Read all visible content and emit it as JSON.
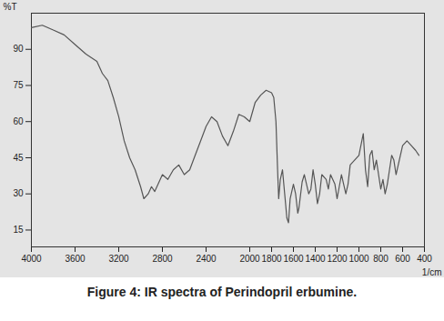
{
  "chart_data": {
    "type": "line",
    "title": "Figure 4: IR spectra of Perindopril erbumine.",
    "x_label": "1/cm",
    "y_label": "%T",
    "x": [
      4000,
      3900,
      3800,
      3700,
      3600,
      3500,
      3400,
      3350,
      3300,
      3250,
      3200,
      3150,
      3100,
      3050,
      3000,
      2970,
      2930,
      2900,
      2870,
      2800,
      2750,
      2700,
      2650,
      2600,
      2550,
      2500,
      2450,
      2400,
      2350,
      2300,
      2250,
      2200,
      2150,
      2100,
      2050,
      2000,
      1950,
      1900,
      1850,
      1800,
      1780,
      1760,
      1745,
      1735,
      1720,
      1700,
      1680,
      1660,
      1645,
      1630,
      1600,
      1580,
      1560,
      1550,
      1520,
      1500,
      1460,
      1440,
      1420,
      1400,
      1380,
      1360,
      1340,
      1300,
      1280,
      1260,
      1220,
      1200,
      1180,
      1160,
      1120,
      1100,
      1080,
      1040,
      1000,
      960,
      940,
      920,
      900,
      880,
      860,
      840,
      820,
      800,
      780,
      760,
      740,
      720,
      700,
      680,
      660,
      640,
      600,
      560,
      520,
      480,
      450
    ],
    "values": [
      99,
      100,
      98,
      96,
      92,
      88,
      85,
      80,
      77,
      70,
      62,
      52,
      45,
      40,
      33,
      28,
      30,
      33,
      31,
      38,
      36,
      40,
      42,
      38,
      40,
      46,
      52,
      58,
      62,
      60,
      54,
      50,
      56,
      63,
      62,
      60,
      68,
      71,
      73,
      72,
      70,
      60,
      40,
      28,
      36,
      40,
      30,
      20,
      18,
      28,
      34,
      30,
      22,
      24,
      35,
      38,
      30,
      32,
      40,
      34,
      26,
      30,
      38,
      36,
      32,
      38,
      34,
      28,
      33,
      38,
      30,
      34,
      42,
      44,
      46,
      55,
      40,
      33,
      46,
      48,
      40,
      44,
      38,
      32,
      36,
      30,
      34,
      40,
      46,
      44,
      38,
      42,
      50,
      52,
      50,
      48,
      46
    ],
    "color": "#555555",
    "xlim": [
      4000,
      400
    ],
    "xticks": [
      4000,
      3600,
      3200,
      2800,
      2400,
      2000,
      1800,
      1600,
      1400,
      1200,
      1000,
      800,
      600,
      400
    ],
    "ylim": [
      8,
      105
    ],
    "yticks": [
      15,
      30,
      45,
      60,
      75,
      90
    ],
    "grid": false
  }
}
